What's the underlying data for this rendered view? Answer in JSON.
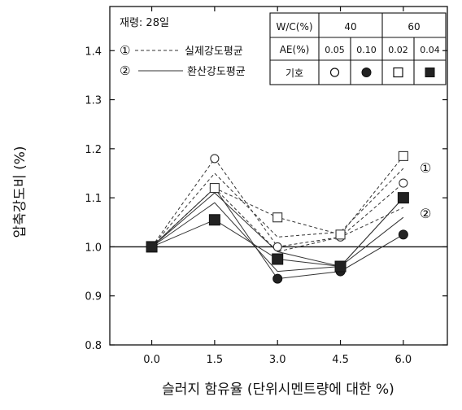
{
  "chart_data": {
    "type": "line",
    "xlabel": "슬러지 함유율 (단위시멘트량에 대한 %)",
    "ylabel": "압축강도비 (%)",
    "x_ticks": [
      "0.0",
      "1.5",
      "3.0",
      "4.5",
      "6.0"
    ],
    "x_values": [
      0.0,
      1.5,
      3.0,
      4.5,
      6.0
    ],
    "y_ticks": [
      "0.8",
      "0.9",
      "1.0",
      "1.1",
      "1.2",
      "1.3",
      "1.4"
    ],
    "xlim": [
      -1.0,
      7.05
    ],
    "ylim": [
      0.8,
      1.49
    ],
    "reference_line": 1.0,
    "grid": false,
    "legend": {
      "age_label": "재령: 28일",
      "line_entries": [
        {
          "number": "①",
          "name": "실제강도평균",
          "style": "dashed"
        },
        {
          "number": "②",
          "name": "환산강도평균",
          "style": "solid"
        }
      ],
      "table": {
        "row_headers": [
          "W/C(%)",
          "AE(%)",
          "기호"
        ],
        "wc_values": [
          "40",
          "60"
        ],
        "ae_values": [
          "0.05",
          "0.10",
          "0.02",
          "0.04"
        ]
      }
    },
    "curve_labels": [
      "①",
      "②"
    ],
    "series": [
      {
        "key": "wc40_ae005",
        "marker": "open-circle",
        "actual": [
          1.0,
          1.18,
          1.0,
          1.02,
          1.13
        ],
        "converted": [
          1.0,
          1.09,
          0.95,
          0.96,
          1.06
        ]
      },
      {
        "key": "wc40_ae010",
        "marker": "filled-circle",
        "actual": [
          1.0,
          1.12,
          0.99,
          1.02,
          1.08
        ],
        "converted": [
          1.0,
          1.12,
          0.935,
          0.95,
          1.025
        ]
      },
      {
        "key": "wc60_ae002",
        "marker": "open-square",
        "actual": [
          1.0,
          1.12,
          1.06,
          1.025,
          1.185
        ],
        "converted": [
          1.0,
          1.11,
          0.99,
          0.96,
          1.1
        ]
      },
      {
        "key": "wc60_ae004",
        "marker": "filled-square",
        "actual": [
          1.0,
          1.15,
          1.02,
          1.03,
          1.16
        ],
        "converted": [
          1.0,
          1.055,
          0.975,
          0.96,
          1.1
        ]
      }
    ]
  }
}
